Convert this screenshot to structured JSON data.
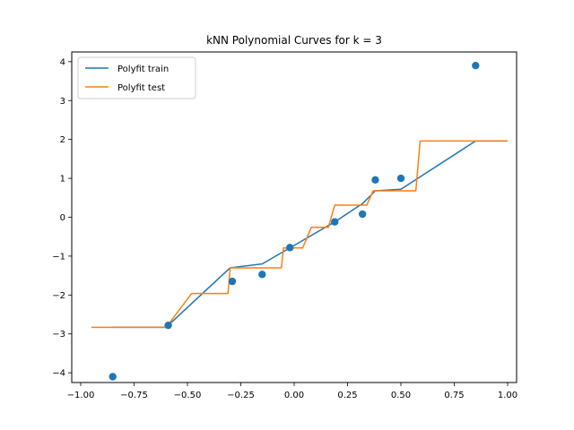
{
  "chart_data": {
    "type": "line",
    "title": "kNN Polynomial Curves for k = 3",
    "xlabel": "",
    "ylabel": "",
    "xlim": [
      -1.0,
      1.0
    ],
    "ylim": [
      -4.25,
      4.25
    ],
    "xticks": [
      -1.0,
      -0.75,
      -0.5,
      -0.25,
      0.0,
      0.25,
      0.5,
      0.75,
      1.0
    ],
    "xtick_labels": [
      "−1.00",
      "−0.75",
      "−0.50",
      "−0.25",
      "0.00",
      "0.25",
      "0.50",
      "0.75",
      "1.00"
    ],
    "yticks": [
      -4,
      -3,
      -2,
      -1,
      0,
      1,
      2,
      3,
      4
    ],
    "ytick_labels": [
      "−4",
      "−3",
      "−2",
      "−1",
      "0",
      "1",
      "2",
      "3",
      "4"
    ],
    "legend_position": "upper-left",
    "scatter": {
      "color": "#1f77b4",
      "x": [
        -0.85,
        -0.59,
        -0.29,
        -0.15,
        -0.02,
        0.19,
        0.32,
        0.38,
        0.5,
        0.85
      ],
      "y": [
        -4.1,
        -2.78,
        -1.65,
        -1.47,
        -0.78,
        -0.12,
        0.08,
        0.96,
        1.0,
        3.9
      ]
    },
    "series": [
      {
        "name": "Polyfit train",
        "color": "#1f77b4",
        "x": [
          -0.85,
          -0.6,
          -0.3,
          -0.15,
          0.19,
          0.32,
          0.38,
          0.5,
          0.85,
          1.0
        ],
        "y": [
          -2.83,
          -2.83,
          -1.3,
          -1.2,
          -0.12,
          0.35,
          0.68,
          0.72,
          1.96,
          1.96
        ]
      },
      {
        "name": "Polyfit test",
        "color": "#ff7f0e",
        "x": [
          -0.95,
          -0.6,
          -0.48,
          -0.31,
          -0.3,
          -0.06,
          -0.05,
          0.04,
          0.08,
          0.16,
          0.19,
          0.34,
          0.37,
          0.57,
          0.59,
          1.0
        ],
        "y": [
          -2.83,
          -2.83,
          -1.96,
          -1.96,
          -1.3,
          -1.3,
          -0.79,
          -0.79,
          -0.26,
          -0.26,
          0.31,
          0.31,
          0.68,
          0.68,
          1.96,
          1.96
        ]
      }
    ]
  }
}
